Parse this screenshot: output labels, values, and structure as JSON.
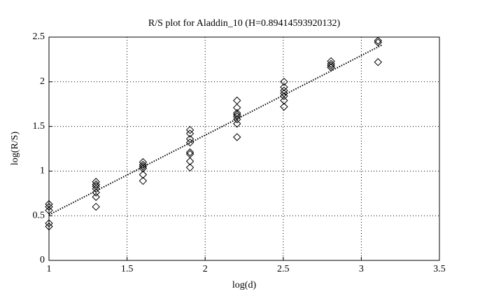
{
  "chart_data": {
    "type": "scatter",
    "title": "R/S plot for Aladdin_10 (H=0.89414593920132)",
    "x_label": "log(d)",
    "y_label": "log(R/S)",
    "xlim": [
      1,
      3.5
    ],
    "ylim": [
      0,
      2.5
    ],
    "xticks": [
      1,
      1.5,
      2,
      2.5,
      3,
      3.5
    ],
    "yticks": [
      0,
      0.5,
      1,
      1.5,
      2,
      2.5
    ],
    "grid": true,
    "color": "#000000",
    "marker": "diamond",
    "series": [
      {
        "x": [
          1,
          1,
          1,
          1,
          1,
          1.301,
          1.301,
          1.301,
          1.301,
          1.301,
          1.301,
          1.301,
          1.602,
          1.602,
          1.602,
          1.602,
          1.602,
          1.602,
          1.903,
          1.903,
          1.903,
          1.903,
          1.903,
          1.903,
          1.903,
          1.903,
          2.204,
          2.204,
          2.204,
          2.204,
          2.204,
          2.204,
          2.204,
          2.204,
          2.505,
          2.505,
          2.505,
          2.505,
          2.505,
          2.505,
          2.505,
          2.806,
          2.806,
          2.806,
          2.806,
          3.107,
          3.107,
          3.107
        ],
        "y": [
          0.63,
          0.6,
          0.56,
          0.415,
          0.38,
          0.88,
          0.85,
          0.83,
          0.8,
          0.76,
          0.71,
          0.6,
          1.1,
          1.07,
          1.05,
          1.03,
          0.96,
          0.89,
          1.46,
          1.42,
          1.36,
          1.32,
          1.21,
          1.19,
          1.11,
          1.04,
          1.79,
          1.71,
          1.65,
          1.63,
          1.61,
          1.58,
          1.53,
          1.38,
          2.0,
          1.94,
          1.9,
          1.87,
          1.84,
          1.79,
          1.72,
          2.23,
          2.2,
          2.18,
          2.16,
          2.46,
          2.44,
          2.22
        ]
      }
    ],
    "fit": {
      "x": [
        1,
        3.13
      ],
      "y": [
        0.51,
        2.41
      ]
    }
  }
}
